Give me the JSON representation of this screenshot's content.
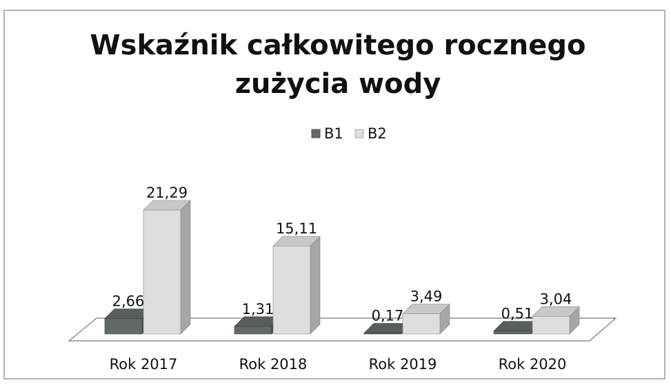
{
  "chart_data": {
    "type": "bar3d",
    "title": [
      "Wskaźnik całkowitego rocznego",
      "zużycia wody"
    ],
    "categories": [
      "Rok 2017",
      "Rok 2018",
      "Rok 2019",
      "Rok 2020"
    ],
    "series": [
      {
        "name": "B1",
        "color": "#626862",
        "values": [
          2.66,
          1.31,
          0.17,
          0.51
        ],
        "value_labels": [
          "2,66",
          "1,31",
          "0,17",
          "0,51"
        ]
      },
      {
        "name": "B2",
        "color": "#dcdfdb",
        "values": [
          21.29,
          15.11,
          3.49,
          3.04
        ],
        "value_labels": [
          "21,29",
          "15,11",
          "3,49",
          "3,04"
        ]
      }
    ],
    "legend": "top"
  }
}
